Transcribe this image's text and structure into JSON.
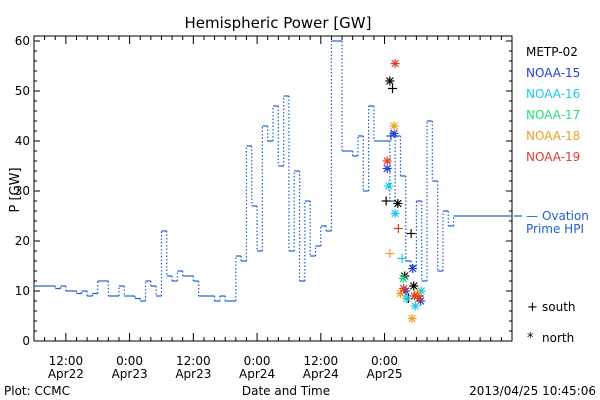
{
  "chart_data": {
    "type": "line",
    "title": "Hemispheric Power [GW]",
    "xlabel": "Date and Time",
    "ylabel": "P [GW]",
    "ylim": [
      0,
      61
    ],
    "xlim_hours": [
      -6,
      84
    ],
    "x_ticks": [
      {
        "line1": "12:00",
        "line2": "Apr22",
        "h": 0
      },
      {
        "line1": "0:00",
        "line2": "Apr23",
        "h": 12
      },
      {
        "line1": "12:00",
        "line2": "Apr23",
        "h": 24
      },
      {
        "line1": "0:00",
        "line2": "Apr24",
        "h": 36
      },
      {
        "line1": "12:00",
        "line2": "Apr24",
        "h": 48
      },
      {
        "line1": "0:00",
        "line2": "Apr25",
        "h": 60
      }
    ],
    "y_ticks": [
      0,
      10,
      20,
      30,
      40,
      50,
      60
    ],
    "ovation": {
      "name_line1": "Ovation",
      "name_line2": "Prime HPI",
      "prefix": "—",
      "color": "#1f5fd6",
      "last_value": 25,
      "points": [
        [
          -6,
          11
        ],
        [
          -3,
          11
        ],
        [
          -2,
          10.5
        ],
        [
          -1,
          11
        ],
        [
          0,
          10
        ],
        [
          2,
          9.5
        ],
        [
          3,
          10
        ],
        [
          4,
          9
        ],
        [
          5,
          9.5
        ],
        [
          6,
          12
        ],
        [
          8,
          9
        ],
        [
          9,
          9
        ],
        [
          10,
          11
        ],
        [
          11,
          9
        ],
        [
          12,
          9
        ],
        [
          13,
          8.5
        ],
        [
          14,
          8
        ],
        [
          15,
          12
        ],
        [
          16,
          11
        ],
        [
          17,
          9
        ],
        [
          18,
          22
        ],
        [
          19,
          13
        ],
        [
          20,
          12
        ],
        [
          21,
          14
        ],
        [
          22,
          13
        ],
        [
          24,
          12
        ],
        [
          25,
          9
        ],
        [
          26,
          9
        ],
        [
          27,
          9
        ],
        [
          28,
          8
        ],
        [
          29,
          9
        ],
        [
          30,
          8
        ],
        [
          31,
          8
        ],
        [
          32,
          17
        ],
        [
          33,
          16
        ],
        [
          34,
          39
        ],
        [
          35,
          27
        ],
        [
          36,
          18
        ],
        [
          37,
          43
        ],
        [
          38,
          40
        ],
        [
          39,
          47
        ],
        [
          40,
          35
        ],
        [
          41,
          49
        ],
        [
          42,
          18
        ],
        [
          43,
          34
        ],
        [
          44,
          12
        ],
        [
          45,
          28
        ],
        [
          46,
          17
        ],
        [
          47,
          19
        ],
        [
          48,
          23
        ],
        [
          49,
          22
        ],
        [
          50,
          60
        ],
        [
          51,
          60
        ],
        [
          52,
          38
        ],
        [
          53,
          38
        ],
        [
          54,
          37
        ],
        [
          55,
          41
        ],
        [
          56,
          30
        ],
        [
          57,
          47
        ],
        [
          58,
          40
        ],
        [
          59,
          40
        ],
        [
          60,
          40
        ],
        [
          61,
          28
        ],
        [
          62,
          41
        ],
        [
          63,
          33
        ],
        [
          64,
          16
        ],
        [
          65,
          15
        ],
        [
          66,
          28
        ],
        [
          67,
          12
        ],
        [
          68,
          44
        ],
        [
          69,
          32
        ],
        [
          70,
          14
        ],
        [
          71,
          26
        ],
        [
          72,
          23
        ],
        [
          73,
          25
        ]
      ]
    },
    "satellites": [
      {
        "name": "METP-02",
        "color": "#000000"
      },
      {
        "name": "NOAA-15",
        "color": "#1f3fd6"
      },
      {
        "name": "NOAA-16",
        "color": "#19c8e8"
      },
      {
        "name": "NOAA-17",
        "color": "#22e07a"
      },
      {
        "name": "NOAA-18",
        "color": "#f0a020"
      },
      {
        "name": "NOAA-19",
        "color": "#e03a2a"
      }
    ],
    "markers": [
      {
        "sat": 0,
        "kind": "north",
        "x": 61,
        "y": 52
      },
      {
        "sat": 0,
        "kind": "south",
        "x": 61.5,
        "y": 50.5
      },
      {
        "sat": 0,
        "kind": "south",
        "x": 60.3,
        "y": 28
      },
      {
        "sat": 0,
        "kind": "north",
        "x": 62.5,
        "y": 27.5
      },
      {
        "sat": 0,
        "kind": "south",
        "x": 65,
        "y": 21.5
      },
      {
        "sat": 0,
        "kind": "north",
        "x": 63.8,
        "y": 13
      },
      {
        "sat": 0,
        "kind": "north",
        "x": 65.5,
        "y": 11
      },
      {
        "sat": 0,
        "kind": "south",
        "x": 66.5,
        "y": 9
      },
      {
        "sat": 0,
        "kind": "south",
        "x": 64.5,
        "y": 8.5
      },
      {
        "sat": 1,
        "kind": "north",
        "x": 61.8,
        "y": 41.5
      },
      {
        "sat": 1,
        "kind": "south",
        "x": 61.2,
        "y": 41
      },
      {
        "sat": 1,
        "kind": "north",
        "x": 60.5,
        "y": 34.5
      },
      {
        "sat": 1,
        "kind": "north",
        "x": 65.3,
        "y": 14.5
      },
      {
        "sat": 1,
        "kind": "north",
        "x": 66.8,
        "y": 8
      },
      {
        "sat": 1,
        "kind": "north",
        "x": 64,
        "y": 10
      },
      {
        "sat": 2,
        "kind": "north",
        "x": 60.8,
        "y": 31
      },
      {
        "sat": 2,
        "kind": "north",
        "x": 62,
        "y": 25.5
      },
      {
        "sat": 2,
        "kind": "south",
        "x": 63.3,
        "y": 16.5
      },
      {
        "sat": 2,
        "kind": "north",
        "x": 64.2,
        "y": 8.5
      },
      {
        "sat": 2,
        "kind": "north",
        "x": 65.8,
        "y": 7
      },
      {
        "sat": 2,
        "kind": "north",
        "x": 66.9,
        "y": 10
      },
      {
        "sat": 3,
        "kind": "north",
        "x": 63.5,
        "y": 12.5
      },
      {
        "sat": 4,
        "kind": "north",
        "x": 61.8,
        "y": 43
      },
      {
        "sat": 4,
        "kind": "south",
        "x": 61,
        "y": 17.5
      },
      {
        "sat": 4,
        "kind": "north",
        "x": 63,
        "y": 9.5
      },
      {
        "sat": 4,
        "kind": "north",
        "x": 65.2,
        "y": 4.5
      },
      {
        "sat": 4,
        "kind": "north",
        "x": 66.2,
        "y": 9.5
      },
      {
        "sat": 5,
        "kind": "north",
        "x": 62,
        "y": 55.5
      },
      {
        "sat": 5,
        "kind": "north",
        "x": 60.5,
        "y": 36
      },
      {
        "sat": 5,
        "kind": "south",
        "x": 62.6,
        "y": 22.5
      },
      {
        "sat": 5,
        "kind": "north",
        "x": 63.6,
        "y": 10.5
      },
      {
        "sat": 5,
        "kind": "north",
        "x": 65.6,
        "y": 9
      },
      {
        "sat": 5,
        "kind": "north",
        "x": 66.5,
        "y": 8.5
      }
    ],
    "symbol_legend": [
      {
        "symbol": "+",
        "label": "south"
      },
      {
        "symbol": "*",
        "label": "north"
      }
    ]
  },
  "footer": {
    "plot_source": "Plot: CCMC",
    "timestamp": "2013/04/25 10:45:06"
  }
}
